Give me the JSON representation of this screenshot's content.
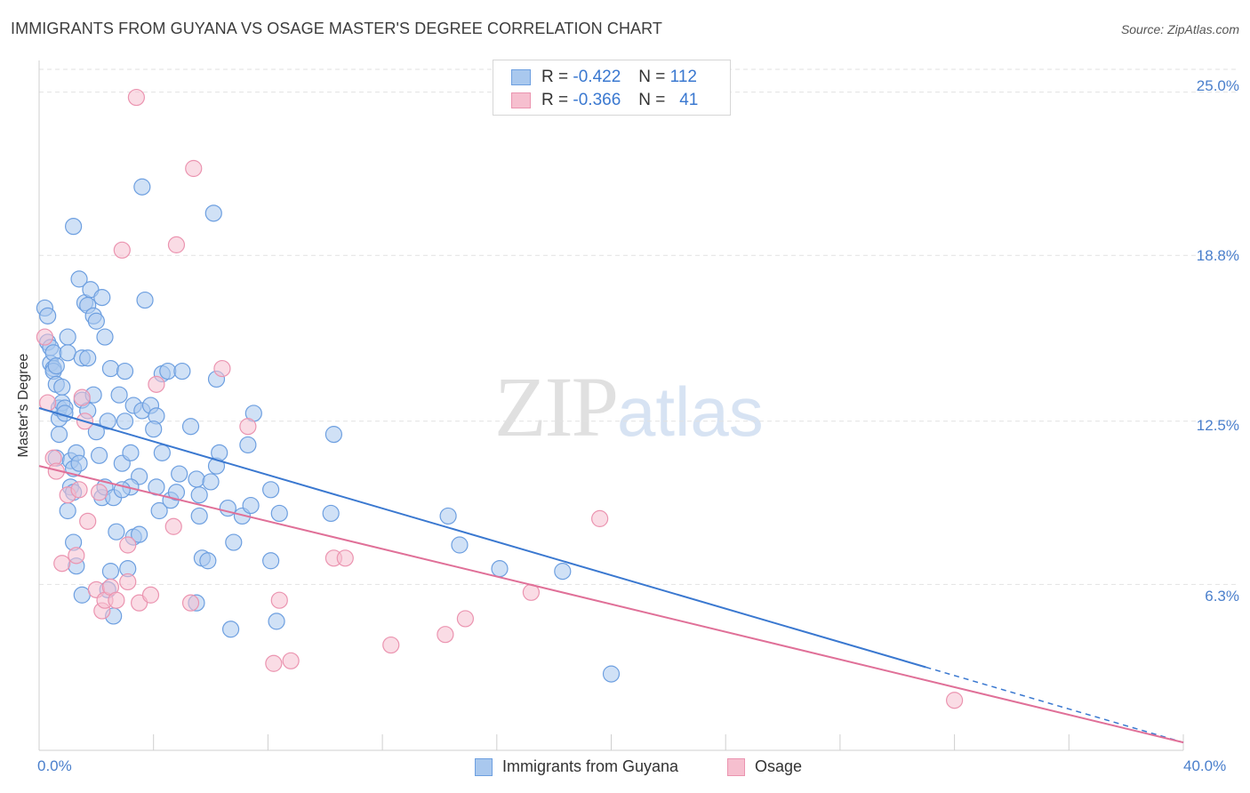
{
  "header": {
    "title": "IMMIGRANTS FROM GUYANA VS OSAGE MASTER'S DEGREE CORRELATION CHART",
    "source": "Source: ZipAtlas.com"
  },
  "watermark": {
    "zip": "ZIP",
    "atlas": "atlas"
  },
  "legend": {
    "r_label": "R =",
    "n_label": "N =",
    "series": [
      {
        "r": "-0.422",
        "n": "112"
      },
      {
        "r": "-0.366",
        "n": "41"
      }
    ]
  },
  "bottom_legend": [
    "Immigrants from Guyana",
    "Osage"
  ],
  "colors": {
    "blue_fill": "#a9c8ee",
    "blue_stroke": "#6d9fe0",
    "blue_line": "#3a78d0",
    "pink_fill": "#f6bfcf",
    "pink_stroke": "#eb94b0",
    "pink_line": "#e07098",
    "tick_text": "#4a7fcc",
    "grid": "#e2e2e2"
  },
  "chart_data": {
    "type": "scatter",
    "title": "IMMIGRANTS FROM GUYANA VS OSAGE MASTER'S DEGREE CORRELATION CHART",
    "xlabel": "",
    "ylabel": "Master's Degree",
    "xlim": [
      0,
      40
    ],
    "ylim": [
      0,
      26
    ],
    "x_ticks": [
      "0.0%",
      "40.0%"
    ],
    "y_ticks": [
      {
        "value": 6.3,
        "label": "6.3%"
      },
      {
        "value": 12.5,
        "label": "12.5%"
      },
      {
        "value": 18.8,
        "label": "18.8%"
      },
      {
        "value": 25.0,
        "label": "25.0%"
      }
    ],
    "grid": "horizontal dashed",
    "series": [
      {
        "name": "Immigrants from Guyana",
        "trend": {
          "x0": 0,
          "y0": 13.0,
          "x1": 40,
          "y1": 0.3,
          "solid_until_x": 31
        },
        "points": [
          [
            0.2,
            16.8
          ],
          [
            0.3,
            16.5
          ],
          [
            0.3,
            15.5
          ],
          [
            0.4,
            15.3
          ],
          [
            0.4,
            14.7
          ],
          [
            0.5,
            14.5
          ],
          [
            0.5,
            15.1
          ],
          [
            0.5,
            14.4
          ],
          [
            0.6,
            13.9
          ],
          [
            0.6,
            14.6
          ],
          [
            0.6,
            11.1
          ],
          [
            0.7,
            12.0
          ],
          [
            0.7,
            12.6
          ],
          [
            0.7,
            13.0
          ],
          [
            0.8,
            13.8
          ],
          [
            0.8,
            13.2
          ],
          [
            0.9,
            13.0
          ],
          [
            0.9,
            12.8
          ],
          [
            1.0,
            15.7
          ],
          [
            1.0,
            15.1
          ],
          [
            1.1,
            11.0
          ],
          [
            1.2,
            10.7
          ],
          [
            1.0,
            9.1
          ],
          [
            1.1,
            10.0
          ],
          [
            1.2,
            9.8
          ],
          [
            1.3,
            11.3
          ],
          [
            1.4,
            10.9
          ],
          [
            1.2,
            7.9
          ],
          [
            1.3,
            7.0
          ],
          [
            1.5,
            5.9
          ],
          [
            1.2,
            19.9
          ],
          [
            1.4,
            17.9
          ],
          [
            1.6,
            17.0
          ],
          [
            1.7,
            16.9
          ],
          [
            1.8,
            17.5
          ],
          [
            1.9,
            16.5
          ],
          [
            2.0,
            16.3
          ],
          [
            2.2,
            17.2
          ],
          [
            2.3,
            15.7
          ],
          [
            1.5,
            14.9
          ],
          [
            1.7,
            14.9
          ],
          [
            1.5,
            13.3
          ],
          [
            1.7,
            12.9
          ],
          [
            1.9,
            13.5
          ],
          [
            2.0,
            12.1
          ],
          [
            2.1,
            11.2
          ],
          [
            2.4,
            12.5
          ],
          [
            2.5,
            14.5
          ],
          [
            2.2,
            9.6
          ],
          [
            2.3,
            10.0
          ],
          [
            2.6,
            9.6
          ],
          [
            2.8,
            13.5
          ],
          [
            2.9,
            10.9
          ],
          [
            3.0,
            12.5
          ],
          [
            3.0,
            14.4
          ],
          [
            3.2,
            11.3
          ],
          [
            3.3,
            13.1
          ],
          [
            3.5,
            10.4
          ],
          [
            3.6,
            12.9
          ],
          [
            3.7,
            17.1
          ],
          [
            3.6,
            21.4
          ],
          [
            3.2,
            10.0
          ],
          [
            2.9,
            9.9
          ],
          [
            2.7,
            8.3
          ],
          [
            2.5,
            6.8
          ],
          [
            2.4,
            6.1
          ],
          [
            2.6,
            5.1
          ],
          [
            3.1,
            6.9
          ],
          [
            3.3,
            8.1
          ],
          [
            3.5,
            8.2
          ],
          [
            3.9,
            13.1
          ],
          [
            4.1,
            12.7
          ],
          [
            4.0,
            12.2
          ],
          [
            4.1,
            10.0
          ],
          [
            4.2,
            9.1
          ],
          [
            4.3,
            11.3
          ],
          [
            4.3,
            14.3
          ],
          [
            4.5,
            14.4
          ],
          [
            4.6,
            9.5
          ],
          [
            4.8,
            9.8
          ],
          [
            4.9,
            10.5
          ],
          [
            5.0,
            14.4
          ],
          [
            5.3,
            12.3
          ],
          [
            5.5,
            10.3
          ],
          [
            5.6,
            9.7
          ],
          [
            5.7,
            7.3
          ],
          [
            5.5,
            5.6
          ],
          [
            5.6,
            8.9
          ],
          [
            5.9,
            7.2
          ],
          [
            6.0,
            10.2
          ],
          [
            6.1,
            20.4
          ],
          [
            6.2,
            10.8
          ],
          [
            6.2,
            14.1
          ],
          [
            6.3,
            11.3
          ],
          [
            6.6,
            9.2
          ],
          [
            6.8,
            7.9
          ],
          [
            6.7,
            4.6
          ],
          [
            7.1,
            8.9
          ],
          [
            7.3,
            11.6
          ],
          [
            7.5,
            12.8
          ],
          [
            7.4,
            9.3
          ],
          [
            8.1,
            7.2
          ],
          [
            8.1,
            9.9
          ],
          [
            8.4,
            9.0
          ],
          [
            8.3,
            4.9
          ],
          [
            10.2,
            9.0
          ],
          [
            10.3,
            12.0
          ],
          [
            14.3,
            8.9
          ],
          [
            14.7,
            7.8
          ],
          [
            16.1,
            6.9
          ],
          [
            18.3,
            6.8
          ],
          [
            20.0,
            2.9
          ]
        ]
      },
      {
        "name": "Osage",
        "trend": {
          "x0": 0,
          "y0": 10.8,
          "x1": 40,
          "y1": 0.3
        },
        "points": [
          [
            0.2,
            15.7
          ],
          [
            0.3,
            13.2
          ],
          [
            0.5,
            11.1
          ],
          [
            0.6,
            10.6
          ],
          [
            0.8,
            7.1
          ],
          [
            1.0,
            9.7
          ],
          [
            1.3,
            7.4
          ],
          [
            1.4,
            9.9
          ],
          [
            1.5,
            13.4
          ],
          [
            1.6,
            12.5
          ],
          [
            1.7,
            8.7
          ],
          [
            2.0,
            6.1
          ],
          [
            2.1,
            9.8
          ],
          [
            2.2,
            5.3
          ],
          [
            2.3,
            5.7
          ],
          [
            2.5,
            6.2
          ],
          [
            2.7,
            5.7
          ],
          [
            2.9,
            19.0
          ],
          [
            3.1,
            7.8
          ],
          [
            3.1,
            6.4
          ],
          [
            3.4,
            24.8
          ],
          [
            3.5,
            5.6
          ],
          [
            3.9,
            5.9
          ],
          [
            4.1,
            13.9
          ],
          [
            4.7,
            8.5
          ],
          [
            4.8,
            19.2
          ],
          [
            5.3,
            5.6
          ],
          [
            5.4,
            22.1
          ],
          [
            6.4,
            14.5
          ],
          [
            7.3,
            12.3
          ],
          [
            8.2,
            3.3
          ],
          [
            8.4,
            5.7
          ],
          [
            8.8,
            3.4
          ],
          [
            10.3,
            7.3
          ],
          [
            10.7,
            7.3
          ],
          [
            12.3,
            4.0
          ],
          [
            14.2,
            4.4
          ],
          [
            14.9,
            5.0
          ],
          [
            17.2,
            6.0
          ],
          [
            19.6,
            8.8
          ],
          [
            32.0,
            1.9
          ]
        ]
      }
    ]
  }
}
